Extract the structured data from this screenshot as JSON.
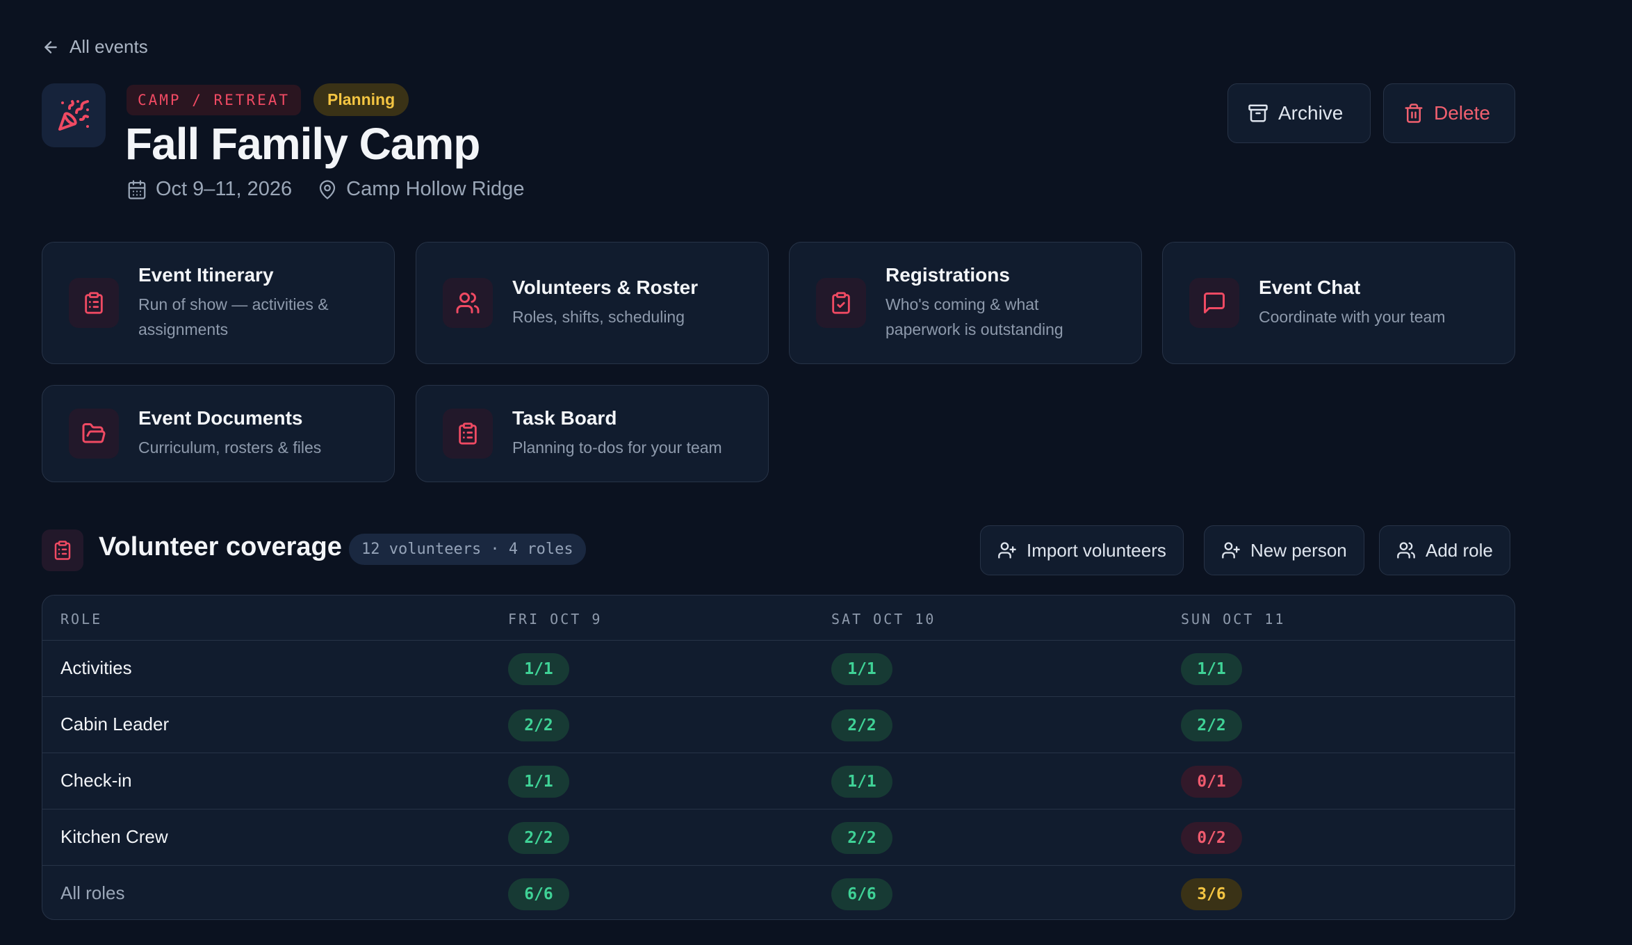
{
  "nav": {
    "back_label": "All events"
  },
  "event": {
    "category": "CAMP / RETREAT",
    "status": "Planning",
    "title": "Fall Family Camp",
    "dates": "Oct 9–11, 2026",
    "location": "Camp Hollow Ridge"
  },
  "actions": {
    "archive": "Archive",
    "delete": "Delete"
  },
  "cards": [
    {
      "title": "Event Itinerary",
      "desc": "Run of show — activities & assignments",
      "icon": "clipboard-icon"
    },
    {
      "title": "Volunteers & Roster",
      "desc": "Roles, shifts, scheduling",
      "icon": "users-icon"
    },
    {
      "title": "Registrations",
      "desc": "Who's coming & what paperwork is outstanding",
      "icon": "clipboard-check-icon"
    },
    {
      "title": "Event Chat",
      "desc": "Coordinate with your team",
      "icon": "chat-icon"
    },
    {
      "title": "Event Documents",
      "desc": "Curriculum, rosters & files",
      "icon": "folder-icon"
    },
    {
      "title": "Task Board",
      "desc": "Planning to-dos for your team",
      "icon": "clipboard-icon"
    }
  ],
  "coverage": {
    "title": "Volunteer coverage",
    "count": "12 volunteers · 4 roles",
    "buttons": {
      "import": "Import volunteers",
      "new_person": "New person",
      "add_role": "Add role"
    },
    "columns": [
      "ROLE",
      "FRI OCT 9",
      "SAT OCT 10",
      "SUN OCT 11"
    ],
    "rows": [
      {
        "role": "Activities",
        "cells": [
          "1/1",
          "1/1",
          "1/1"
        ],
        "status": [
          "ok",
          "ok",
          "ok"
        ]
      },
      {
        "role": "Cabin Leader",
        "cells": [
          "2/2",
          "2/2",
          "2/2"
        ],
        "status": [
          "ok",
          "ok",
          "ok"
        ]
      },
      {
        "role": "Check-in",
        "cells": [
          "1/1",
          "1/1",
          "0/1"
        ],
        "status": [
          "ok",
          "ok",
          "bad"
        ]
      },
      {
        "role": "Kitchen Crew",
        "cells": [
          "2/2",
          "2/2",
          "0/2"
        ],
        "status": [
          "ok",
          "ok",
          "bad"
        ]
      },
      {
        "role": "All roles",
        "cells": [
          "6/6",
          "6/6",
          "3/6"
        ],
        "status": [
          "ok",
          "ok",
          "warn"
        ]
      }
    ]
  },
  "colors": {
    "accent": "#f04a63",
    "ok": "#3fd296",
    "bad": "#f05b6e",
    "warn": "#f4c542",
    "background": "#0b1220"
  }
}
